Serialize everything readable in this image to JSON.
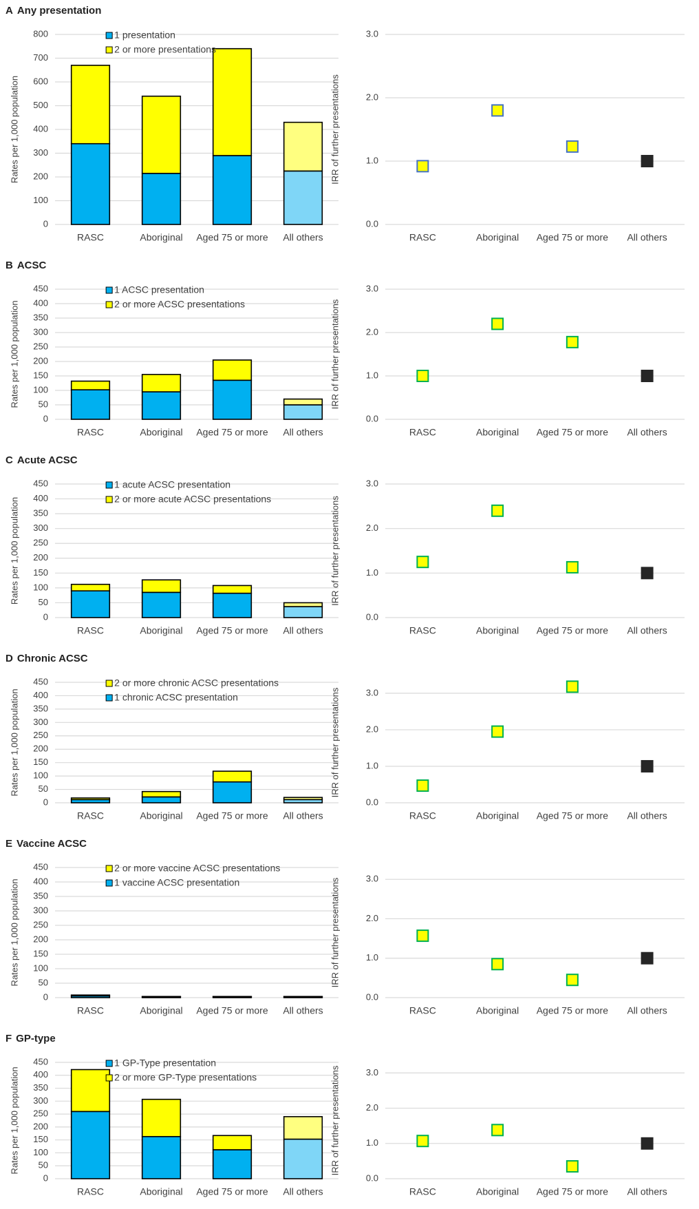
{
  "chart_data": [
    {
      "type": "bar",
      "panel": "A",
      "title": "Any presentation",
      "y_label": "Rates per 1,000 population",
      "categories": [
        "RASC",
        "Aboriginal",
        "Aged 75 or more",
        "All others"
      ],
      "series": [
        {
          "name": "1 presentation",
          "color": "#00b0f0",
          "colors": [
            "#00b0f0",
            "#00b0f0",
            "#00b0f0",
            "#7fd6f7"
          ],
          "values": [
            340,
            215,
            290,
            225
          ]
        },
        {
          "name": "2 or more presentations",
          "color": "#ffff00",
          "colors": [
            "#ffff00",
            "#ffff00",
            "#ffff00",
            "#ffff80"
          ],
          "values": [
            330,
            325,
            450,
            205
          ]
        }
      ],
      "stacked": true,
      "legend_order": [
        0,
        1
      ],
      "ylim": [
        0,
        800
      ],
      "yticks": [
        0,
        100,
        200,
        300,
        400,
        500,
        600,
        700,
        800
      ],
      "grid": true
    },
    {
      "type": "scatter",
      "y_label": "IRR of further presentations",
      "categories": [
        "RASC",
        "Aboriginal",
        "Aged 75 or more",
        "All others"
      ],
      "values": [
        0.92,
        1.8,
        1.23,
        1.0
      ],
      "marker_colors": [
        "#ffff00",
        "#ffff00",
        "#ffff00",
        "#262626"
      ],
      "marker_edges": [
        "#4472c4",
        "#4472c4",
        "#4472c4",
        "#262626"
      ],
      "ylim": [
        0,
        3
      ],
      "yticks": [
        {
          "value": 0,
          "label": "0.0"
        },
        {
          "value": 1,
          "label": "1.0"
        },
        {
          "value": 2,
          "label": "2.0"
        },
        {
          "value": 3,
          "label": "3.0"
        }
      ],
      "grid": true
    },
    {
      "type": "bar",
      "panel": "B",
      "title": "ACSC",
      "y_label": "Rates per 1,000 population",
      "categories": [
        "RASC",
        "Aboriginal",
        "Aged 75 or more",
        "All others"
      ],
      "series": [
        {
          "name": "1 ACSC presentation",
          "color": "#00b0f0",
          "colors": [
            "#00b0f0",
            "#00b0f0",
            "#00b0f0",
            "#7fd6f7"
          ],
          "values": [
            102,
            95,
            135,
            50
          ]
        },
        {
          "name": "2 or more ACSC presentations",
          "color": "#ffff00",
          "colors": [
            "#ffff00",
            "#ffff00",
            "#ffff00",
            "#ffff80"
          ],
          "values": [
            30,
            60,
            70,
            20
          ]
        }
      ],
      "stacked": true,
      "legend_order": [
        0,
        1
      ],
      "ylim": [
        0,
        450
      ],
      "yticks": [
        0,
        50,
        100,
        150,
        200,
        250,
        300,
        350,
        400,
        450
      ],
      "grid": true
    },
    {
      "type": "scatter",
      "y_label": "IRR of further presentations",
      "categories": [
        "RASC",
        "Aboriginal",
        "Aged 75 or more",
        "All others"
      ],
      "values": [
        1.0,
        2.2,
        1.78,
        1.0
      ],
      "marker_colors": [
        "#ffff00",
        "#ffff00",
        "#ffff00",
        "#262626"
      ],
      "marker_edges": [
        "#00b050",
        "#00b050",
        "#00b050",
        "#262626"
      ],
      "ylim": [
        0,
        3
      ],
      "yticks": [
        {
          "value": 0,
          "label": "0.0"
        },
        {
          "value": 1,
          "label": "1.0"
        },
        {
          "value": 2,
          "label": "2.0"
        },
        {
          "value": 3,
          "label": "3.0"
        }
      ],
      "grid": true
    },
    {
      "type": "bar",
      "panel": "C",
      "title": "Acute ACSC",
      "y_label": "Rates per 1,000 population",
      "categories": [
        "RASC",
        "Aboriginal",
        "Aged 75 or more",
        "All others"
      ],
      "series": [
        {
          "name": "1 acute ACSC presentation",
          "color": "#00b0f0",
          "colors": [
            "#00b0f0",
            "#00b0f0",
            "#00b0f0",
            "#7fd6f7"
          ],
          "values": [
            90,
            85,
            82,
            37
          ]
        },
        {
          "name": "2 or more acute ACSC presentations",
          "color": "#ffff00",
          "colors": [
            "#ffff00",
            "#ffff00",
            "#ffff00",
            "#ffff80"
          ],
          "values": [
            22,
            42,
            26,
            13
          ]
        }
      ],
      "stacked": true,
      "legend_order": [
        0,
        1
      ],
      "ylim": [
        0,
        450
      ],
      "yticks": [
        0,
        50,
        100,
        150,
        200,
        250,
        300,
        350,
        400,
        450
      ],
      "grid": true
    },
    {
      "type": "scatter",
      "y_label": "IRR of further presentations",
      "categories": [
        "RASC",
        "Aboriginal",
        "Aged 75 or more",
        "All others"
      ],
      "values": [
        1.25,
        2.4,
        1.13,
        1.0
      ],
      "marker_colors": [
        "#ffff00",
        "#ffff00",
        "#ffff00",
        "#262626"
      ],
      "marker_edges": [
        "#00b050",
        "#00b050",
        "#00b050",
        "#262626"
      ],
      "ylim": [
        0,
        3
      ],
      "yticks": [
        {
          "value": 0,
          "label": "0.0"
        },
        {
          "value": 1,
          "label": "1.0"
        },
        {
          "value": 2,
          "label": "2.0"
        },
        {
          "value": 3,
          "label": "3.0"
        }
      ],
      "grid": true
    },
    {
      "type": "bar",
      "panel": "D",
      "title": "Chronic ACSC",
      "y_label": "Rates per 1,000 population",
      "categories": [
        "RASC",
        "Aboriginal",
        "Aged 75 or more",
        "All others"
      ],
      "series": [
        {
          "name": "1 chronic ACSC presentation",
          "color": "#00b0f0",
          "colors": [
            "#00b0f0",
            "#00b0f0",
            "#00b0f0",
            "#7fd6f7"
          ],
          "values": [
            12,
            22,
            78,
            12
          ]
        },
        {
          "name": "2 or more chronic ACSC presentations",
          "color": "#ffff00",
          "colors": [
            "#ffff00",
            "#ffff00",
            "#ffff00",
            "#ffff80"
          ],
          "values": [
            6,
            20,
            40,
            8
          ]
        }
      ],
      "stacked": true,
      "legend_order": [
        1,
        0
      ],
      "ylim": [
        0,
        450
      ],
      "yticks": [
        0,
        50,
        100,
        150,
        200,
        250,
        300,
        350,
        400,
        450
      ],
      "grid": true
    },
    {
      "type": "scatter",
      "y_label": "IRR of further presentations",
      "categories": [
        "RASC",
        "Aboriginal",
        "Aged 75 or more",
        "All others"
      ],
      "values": [
        0.47,
        1.95,
        3.18,
        1.0
      ],
      "marker_colors": [
        "#ffff00",
        "#ffff00",
        "#ffff00",
        "#262626"
      ],
      "marker_edges": [
        "#00b050",
        "#00b050",
        "#00b050",
        "#262626"
      ],
      "ylim": [
        0,
        3.3
      ],
      "yticks": [
        {
          "value": 0,
          "label": "0.0"
        },
        {
          "value": 1,
          "label": "1.0"
        },
        {
          "value": 2,
          "label": "2.0"
        },
        {
          "value": 3,
          "label": "3.0"
        }
      ],
      "grid": true
    },
    {
      "type": "bar",
      "panel": "E",
      "title": "Vaccine ACSC",
      "y_label": "Rates per 1,000 population",
      "categories": [
        "RASC",
        "Aboriginal",
        "Aged 75 or more",
        "All others"
      ],
      "series": [
        {
          "name": "1 vaccine ACSC presentation",
          "color": "#00b0f0",
          "colors": [
            "#00b0f0",
            "#00b0f0",
            "#00b0f0",
            "#7fd6f7"
          ],
          "values": [
            6,
            3,
            3,
            3
          ]
        },
        {
          "name": "2 or more vaccine ACSC presentations",
          "color": "#ffff00",
          "colors": [
            "#ffff00",
            "#ffff00",
            "#ffff00",
            "#ffff80"
          ],
          "values": [
            3,
            1,
            1,
            1
          ]
        }
      ],
      "stacked": true,
      "legend_order": [
        1,
        0
      ],
      "ylim": [
        0,
        450
      ],
      "yticks": [
        0,
        50,
        100,
        150,
        200,
        250,
        300,
        350,
        400,
        450
      ],
      "grid": true
    },
    {
      "type": "scatter",
      "y_label": "IRR of further presentations",
      "categories": [
        "RASC",
        "Aboriginal",
        "Aged 75 or more",
        "All others"
      ],
      "values": [
        1.57,
        0.85,
        0.45,
        1.0
      ],
      "marker_colors": [
        "#ffff00",
        "#ffff00",
        "#ffff00",
        "#262626"
      ],
      "marker_edges": [
        "#00b050",
        "#00b050",
        "#00b050",
        "#262626"
      ],
      "ylim": [
        0,
        3.3
      ],
      "yticks": [
        {
          "value": 0,
          "label": "0.0"
        },
        {
          "value": 1,
          "label": "1.0"
        },
        {
          "value": 2,
          "label": "2.0"
        },
        {
          "value": 3,
          "label": "3.0"
        }
      ],
      "grid": true
    },
    {
      "type": "bar",
      "panel": "F",
      "title": "GP-type",
      "y_label": "Rates per 1,000 population",
      "categories": [
        "RASC",
        "Aboriginal",
        "Aged 75 or more",
        "All others"
      ],
      "series": [
        {
          "name": "1 GP-Type presentation",
          "color": "#00b0f0",
          "colors": [
            "#00b0f0",
            "#00b0f0",
            "#00b0f0",
            "#7fd6f7"
          ],
          "values": [
            260,
            163,
            112,
            153
          ]
        },
        {
          "name": "2 or more GP-Type presentations",
          "color": "#ffff00",
          "colors": [
            "#ffff00",
            "#ffff00",
            "#ffff00",
            "#ffff80"
          ],
          "values": [
            162,
            144,
            55,
            87
          ]
        }
      ],
      "stacked": true,
      "legend_order": [
        0,
        1
      ],
      "ylim": [
        0,
        450
      ],
      "yticks": [
        0,
        50,
        100,
        150,
        200,
        250,
        300,
        350,
        400,
        450
      ],
      "grid": true
    },
    {
      "type": "scatter",
      "y_label": "IRR of further presentations",
      "categories": [
        "RASC",
        "Aboriginal",
        "Aged 75 or more",
        "All others"
      ],
      "values": [
        1.07,
        1.38,
        0.35,
        1.0
      ],
      "marker_colors": [
        "#ffff00",
        "#ffff00",
        "#ffff00",
        "#262626"
      ],
      "marker_edges": [
        "#00b050",
        "#00b050",
        "#00b050",
        "#262626"
      ],
      "ylim": [
        0,
        3.3
      ],
      "yticks": [
        {
          "value": 0,
          "label": "0.0"
        },
        {
          "value": 1,
          "label": "1.0"
        },
        {
          "value": 2,
          "label": "2.0"
        },
        {
          "value": 3,
          "label": "3.0"
        }
      ],
      "grid": true
    }
  ]
}
